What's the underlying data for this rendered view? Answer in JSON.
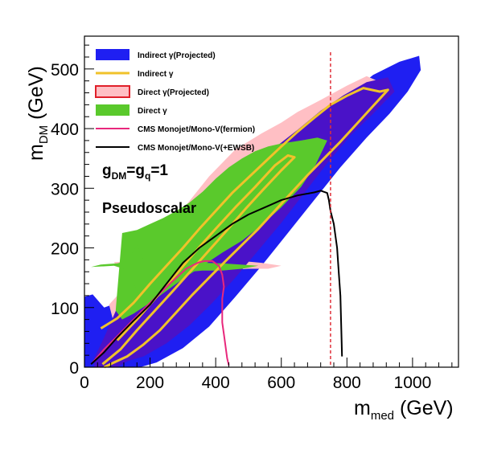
{
  "chart_data": {
    "type": "area",
    "xlabel": "m",
    "xlabel_sub": "med",
    "xlabel_unit": " (GeV)",
    "ylabel": "m",
    "ylabel_sub": "DM",
    "ylabel_unit": " (GeV)",
    "xlim": [
      0,
      1140
    ],
    "ylim": [
      0,
      555
    ],
    "xticks": [
      0,
      200,
      400,
      600,
      800,
      1000
    ],
    "yticks": [
      0,
      100,
      200,
      300,
      400,
      500
    ],
    "x_tick_labels": [
      "0",
      "200",
      "400",
      "600",
      "800",
      "1000"
    ],
    "y_tick_labels": [
      "0",
      "100",
      "200",
      "300",
      "400",
      "500"
    ],
    "grid": false,
    "legend_position": "top-left",
    "annotations": {
      "coupling": {
        "g": "g",
        "dm_sub": "DM",
        "eq": "=g",
        "q_sub": "q",
        "rhs": "=1"
      },
      "model": "Pseudoscalar"
    },
    "vertical_line": {
      "x": 750,
      "color": "#e0303a",
      "style": "dashed"
    },
    "series": [
      {
        "name": "Indirect γ(Projected)",
        "kind": "band",
        "color": "#1f1ff2",
        "polygon": [
          [
            0,
            0
          ],
          [
            0,
            118
          ],
          [
            25,
            122
          ],
          [
            60,
            100
          ],
          [
            110,
            110
          ],
          [
            170,
            150
          ],
          [
            240,
            185
          ],
          [
            330,
            230
          ],
          [
            420,
            270
          ],
          [
            500,
            305
          ],
          [
            580,
            350
          ],
          [
            650,
            390
          ],
          [
            720,
            425
          ],
          [
            800,
            455
          ],
          [
            880,
            490
          ],
          [
            960,
            512
          ],
          [
            1020,
            522
          ],
          [
            1025,
            498
          ],
          [
            985,
            462
          ],
          [
            930,
            425
          ],
          [
            860,
            385
          ],
          [
            780,
            335
          ],
          [
            700,
            280
          ],
          [
            620,
            225
          ],
          [
            540,
            170
          ],
          [
            460,
            118
          ],
          [
            380,
            68
          ],
          [
            300,
            32
          ],
          [
            220,
            8
          ],
          [
            170,
            0
          ]
        ]
      },
      {
        "name": "",
        "kind": "band",
        "color": "#ffbfc4",
        "polygon": [
          [
            75,
            105
          ],
          [
            150,
            150
          ],
          [
            220,
            205
          ],
          [
            300,
            265
          ],
          [
            380,
            320
          ],
          [
            460,
            365
          ],
          [
            540,
            392
          ],
          [
            600,
            410
          ],
          [
            650,
            428
          ],
          [
            720,
            448
          ],
          [
            800,
            472
          ],
          [
            860,
            488
          ],
          [
            935,
            470
          ],
          [
            880,
            438
          ],
          [
            800,
            400
          ],
          [
            720,
            358
          ],
          [
            660,
            320
          ],
          [
            600,
            278
          ],
          [
            530,
            238
          ],
          [
            470,
            205
          ],
          [
            430,
            185
          ],
          [
            420,
            172
          ],
          [
            360,
            168
          ],
          [
            320,
            145
          ],
          [
            260,
            112
          ],
          [
            200,
            75
          ],
          [
            140,
            45
          ],
          [
            110,
            30
          ]
        ]
      },
      {
        "name": "",
        "kind": "band",
        "color": "#ffbfc4",
        "polygon": [
          [
            90,
            176
          ],
          [
            180,
            178
          ],
          [
            250,
            185
          ],
          [
            300,
            178
          ],
          [
            340,
            180
          ],
          [
            380,
            183
          ],
          [
            420,
            180
          ],
          [
            480,
            178
          ],
          [
            540,
            175
          ],
          [
            600,
            170
          ],
          [
            560,
            165
          ],
          [
            500,
            165
          ],
          [
            440,
            163
          ],
          [
            400,
            160
          ],
          [
            370,
            162
          ],
          [
            330,
            160
          ],
          [
            290,
            157
          ],
          [
            250,
            160
          ],
          [
            200,
            162
          ],
          [
            150,
            165
          ],
          [
            100,
            168
          ]
        ]
      },
      {
        "name": "",
        "kind": "band",
        "color": "#4a12c8",
        "polygon": [
          [
            100,
            100
          ],
          [
            180,
            150
          ],
          [
            260,
            200
          ],
          [
            340,
            250
          ],
          [
            420,
            295
          ],
          [
            500,
            332
          ],
          [
            580,
            368
          ],
          [
            650,
            398
          ],
          [
            720,
            430
          ],
          [
            790,
            456
          ],
          [
            860,
            478
          ],
          [
            925,
            486
          ],
          [
            945,
            462
          ],
          [
            880,
            425
          ],
          [
            810,
            388
          ],
          [
            740,
            342
          ],
          [
            670,
            292
          ],
          [
            600,
            242
          ],
          [
            530,
            196
          ],
          [
            460,
            150
          ],
          [
            390,
            108
          ],
          [
            320,
            70
          ],
          [
            250,
            40
          ],
          [
            180,
            18
          ],
          [
            130,
            10
          ],
          [
            100,
            0
          ],
          [
            30,
            0
          ],
          [
            30,
            15
          ],
          [
            60,
            50
          ]
        ]
      },
      {
        "name": "Direct γ",
        "kind": "band",
        "color": "#5ac92c",
        "polygon": [
          [
            115,
            225
          ],
          [
            160,
            230
          ],
          [
            200,
            240
          ],
          [
            240,
            250
          ],
          [
            280,
            262
          ],
          [
            320,
            276
          ],
          [
            360,
            294
          ],
          [
            400,
            316
          ],
          [
            440,
            335
          ],
          [
            480,
            350
          ],
          [
            520,
            362
          ],
          [
            560,
            370
          ],
          [
            600,
            375
          ],
          [
            660,
            380
          ],
          [
            710,
            385
          ],
          [
            740,
            380
          ],
          [
            705,
            340
          ],
          [
            660,
            302
          ],
          [
            600,
            268
          ],
          [
            540,
            238
          ],
          [
            480,
            212
          ],
          [
            420,
            192
          ],
          [
            360,
            170
          ],
          [
            300,
            148
          ],
          [
            250,
            128
          ],
          [
            200,
            108
          ],
          [
            150,
            90
          ],
          [
            115,
            80
          ],
          [
            95,
            95
          ]
        ]
      },
      {
        "name": "Direct γ(Projected)",
        "kind": "band",
        "color": "#5ac92c",
        "polygon": [
          [
            20,
            168
          ],
          [
            90,
            170
          ],
          [
            120,
            165
          ],
          [
            150,
            140
          ],
          [
            170,
            118
          ],
          [
            200,
            130
          ],
          [
            240,
            148
          ],
          [
            280,
            155
          ],
          [
            320,
            160
          ],
          [
            360,
            162
          ],
          [
            420,
            162
          ],
          [
            480,
            165
          ],
          [
            530,
            170
          ],
          [
            475,
            172
          ],
          [
            420,
            174
          ],
          [
            360,
            175
          ],
          [
            300,
            172
          ],
          [
            250,
            166
          ],
          [
            200,
            164
          ],
          [
            180,
            180
          ],
          [
            160,
            205
          ],
          [
            130,
            178
          ],
          [
            100,
            174
          ],
          [
            50,
            172
          ]
        ]
      },
      {
        "name": "Indirect γ",
        "kind": "line",
        "color": "#f0c22a",
        "width": 3,
        "points": [
          [
            50,
            65
          ],
          [
            100,
            82
          ],
          [
            150,
            108
          ],
          [
            200,
            140
          ],
          [
            250,
            170
          ],
          [
            300,
            200
          ],
          [
            350,
            232
          ],
          [
            400,
            262
          ],
          [
            450,
            292
          ],
          [
            500,
            318
          ],
          [
            550,
            344
          ],
          [
            600,
            370
          ],
          [
            650,
            395
          ],
          [
            700,
            418
          ],
          [
            750,
            440
          ],
          [
            800,
            455
          ],
          [
            850,
            468
          ],
          [
            900,
            462
          ],
          [
            925,
            465
          ],
          [
            880,
            438
          ],
          [
            830,
            408
          ],
          [
            780,
            378
          ],
          [
            730,
            350
          ],
          [
            680,
            322
          ],
          [
            630,
            292
          ],
          [
            580,
            262
          ],
          [
            530,
            232
          ],
          [
            480,
            205
          ],
          [
            430,
            178
          ],
          [
            380,
            150
          ],
          [
            330,
            122
          ],
          [
            280,
            92
          ],
          [
            230,
            62
          ],
          [
            180,
            38
          ],
          [
            130,
            18
          ],
          [
            90,
            8
          ],
          [
            60,
            0
          ]
        ]
      },
      {
        "name": "",
        "kind": "line",
        "color": "#f0c22a",
        "width": 3,
        "points": [
          [
            100,
            45
          ],
          [
            160,
            80
          ],
          [
            220,
            118
          ],
          [
            280,
            156
          ],
          [
            340,
            195
          ],
          [
            400,
            232
          ],
          [
            460,
            268
          ],
          [
            520,
            302
          ],
          [
            580,
            338
          ],
          [
            620,
            355
          ],
          [
            640,
            352
          ],
          [
            600,
            330
          ],
          [
            545,
            298
          ],
          [
            490,
            265
          ],
          [
            435,
            230
          ],
          [
            380,
            196
          ],
          [
            325,
            162
          ],
          [
            270,
            128
          ],
          [
            215,
            95
          ],
          [
            160,
            62
          ],
          [
            110,
            30
          ],
          [
            55,
            5
          ]
        ]
      },
      {
        "name": "CMS Monojet/Mono-V(fermion)",
        "kind": "line",
        "color": "#e8287c",
        "width": 2,
        "points": [
          [
            25,
            8
          ],
          [
            60,
            30
          ],
          [
            100,
            52
          ],
          [
            150,
            80
          ],
          [
            200,
            108
          ],
          [
            260,
            140
          ],
          [
            310,
            165
          ],
          [
            345,
            175
          ],
          [
            365,
            178
          ],
          [
            390,
            178
          ],
          [
            410,
            170
          ],
          [
            420,
            155
          ],
          [
            425,
            135
          ],
          [
            420,
            115
          ],
          [
            420,
            95
          ],
          [
            420,
            75
          ],
          [
            425,
            55
          ],
          [
            430,
            35
          ],
          [
            435,
            15
          ],
          [
            440,
            3
          ]
        ]
      },
      {
        "name": "CMS Monojet/Mono-V(+EWSB)",
        "kind": "line",
        "color": "#000000",
        "width": 2,
        "points": [
          [
            20,
            5
          ],
          [
            60,
            25
          ],
          [
            100,
            50
          ],
          [
            150,
            78
          ],
          [
            200,
            105
          ],
          [
            250,
            140
          ],
          [
            300,
            175
          ],
          [
            350,
            200
          ],
          [
            400,
            220
          ],
          [
            450,
            240
          ],
          [
            500,
            256
          ],
          [
            550,
            268
          ],
          [
            600,
            280
          ],
          [
            650,
            288
          ],
          [
            700,
            293
          ],
          [
            720,
            296
          ],
          [
            740,
            292
          ],
          [
            745,
            280
          ],
          [
            750,
            262
          ],
          [
            760,
            240
          ],
          [
            770,
            200
          ],
          [
            775,
            160
          ],
          [
            780,
            120
          ],
          [
            782,
            80
          ],
          [
            784,
            40
          ],
          [
            785,
            18
          ]
        ]
      }
    ]
  }
}
